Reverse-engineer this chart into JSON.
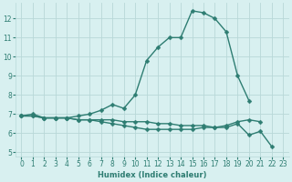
{
  "xlabel": "Humidex (Indice chaleur)",
  "x_values": [
    0,
    1,
    2,
    3,
    4,
    5,
    6,
    7,
    8,
    9,
    10,
    11,
    12,
    13,
    14,
    15,
    16,
    17,
    18,
    19,
    20,
    21,
    22,
    23
  ],
  "line1": [
    6.9,
    7.0,
    6.8,
    6.8,
    6.8,
    6.9,
    7.0,
    7.2,
    7.5,
    7.3,
    8.0,
    9.8,
    10.5,
    11.0,
    11.0,
    12.4,
    12.3,
    12.0,
    11.3,
    9.0,
    7.7,
    null,
    null,
    null
  ],
  "line3": [
    6.9,
    6.9,
    6.8,
    6.8,
    6.8,
    6.7,
    6.7,
    6.7,
    6.7,
    6.6,
    6.6,
    6.6,
    6.5,
    6.5,
    6.4,
    6.4,
    6.4,
    6.3,
    6.3,
    6.5,
    5.9,
    6.1,
    5.3,
    null
  ],
  "line4": [
    6.9,
    6.9,
    6.8,
    6.8,
    6.8,
    6.7,
    6.7,
    6.6,
    6.5,
    6.4,
    6.3,
    6.2,
    6.2,
    6.2,
    6.2,
    6.2,
    6.3,
    6.3,
    6.4,
    6.6,
    6.7,
    6.6,
    null,
    null
  ],
  "line_color": "#2e7d72",
  "bg_color": "#d8f0f0",
  "grid_color": "#b8d8d8",
  "ylim": [
    4.8,
    12.8
  ],
  "xlim": [
    -0.5,
    23.5
  ],
  "yticks": [
    5,
    6,
    7,
    8,
    9,
    10,
    11,
    12
  ],
  "xticks": [
    0,
    1,
    2,
    3,
    4,
    5,
    6,
    7,
    8,
    9,
    10,
    11,
    12,
    13,
    14,
    15,
    16,
    17,
    18,
    19,
    20,
    21,
    22,
    23
  ],
  "xlabel_fontsize": 6.0,
  "tick_fontsize": 5.5,
  "lw": 1.0,
  "ms": 2.5
}
